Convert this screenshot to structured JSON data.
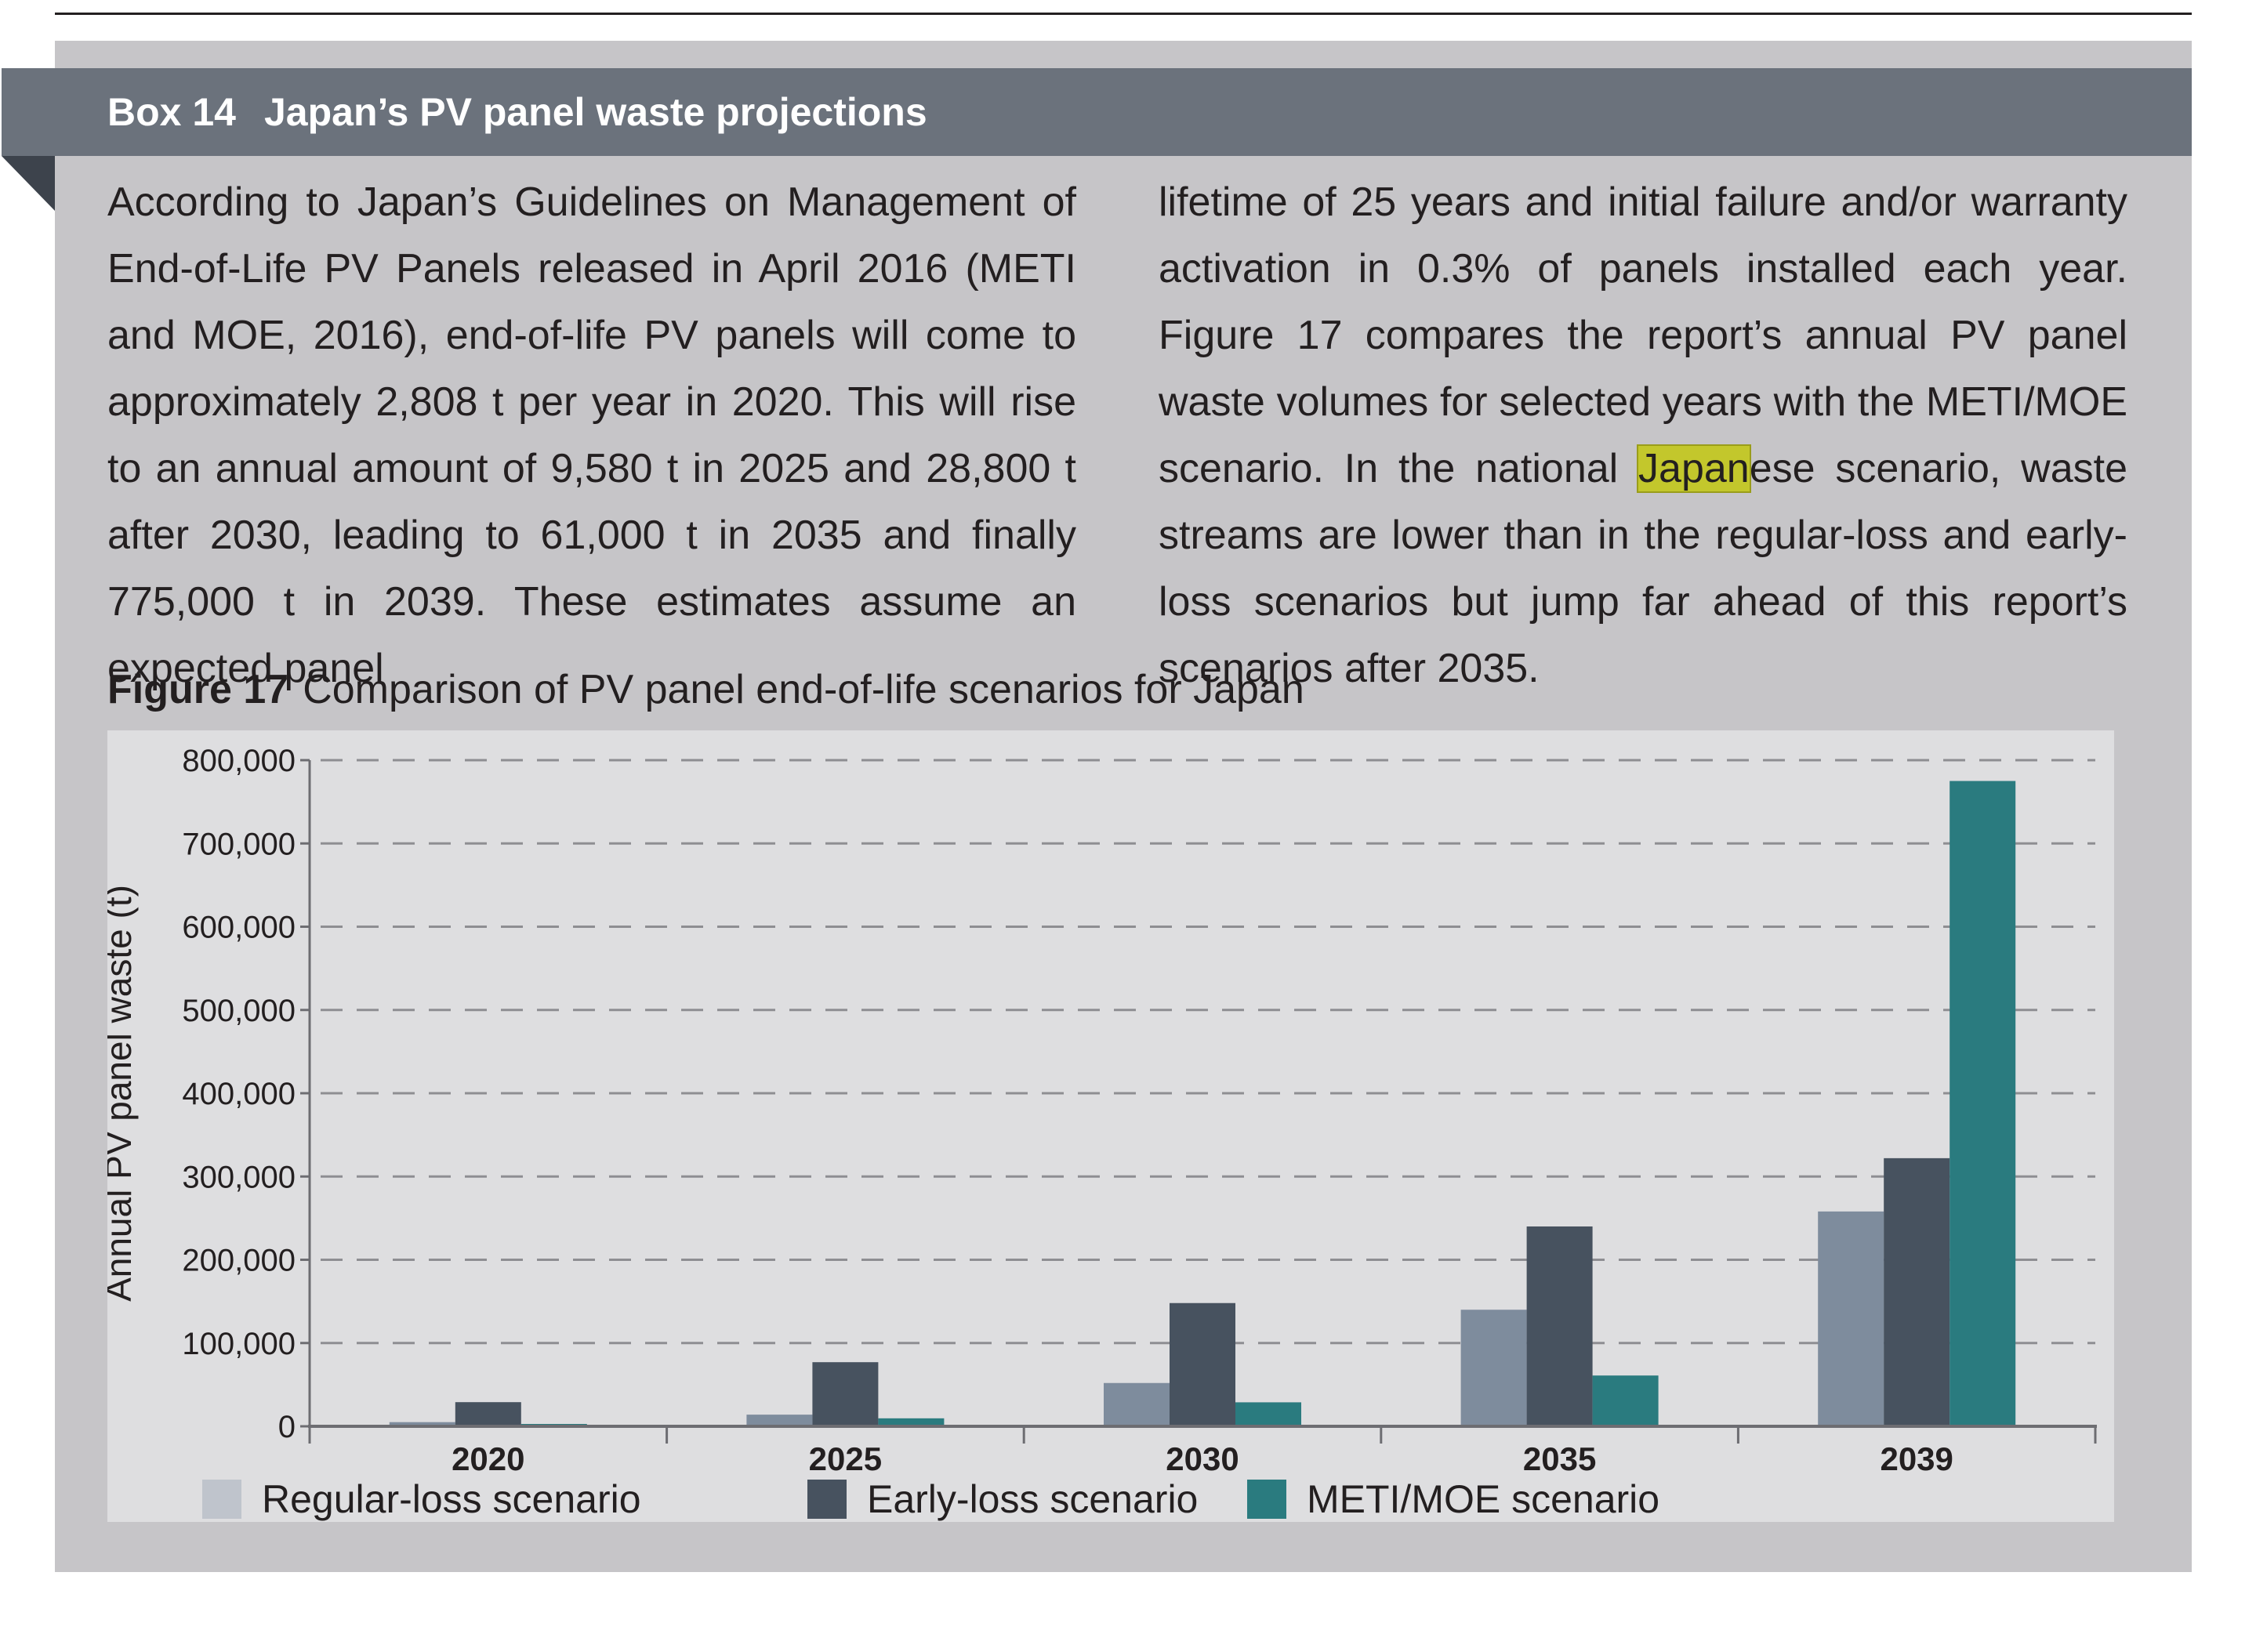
{
  "box": {
    "number": "Box 14",
    "title": "Japan’s PV panel waste projections"
  },
  "body": {
    "left_column": "According to Japan’s Guidelines on Management of End-of-Life PV Panels released in April 2016 (METI and MOE, 2016), end-of-life PV panels will come to approximately 2,808 t per year in 2020. This will rise to an annual amount of 9,580 t in 2025 and 28,800 t after 2030, leading to 61,000 t in 2035 and finally 775,000 t in 2039. These estimates assume an expected panel",
    "right_before": "lifetime of 25 years and initial failure and/or warranty activation in 0.3% of panels installed each year. Figure 17 compares the report’s annual PV panel waste volumes for selected years with the METI/MOE scenario. In the national ",
    "right_highlight": "Japan",
    "right_after": "ese scenario, waste streams are lower than in the regular-loss and early-loss scenarios but jump far ahead of this report’s scenarios after 2035."
  },
  "figure": {
    "label": "Figure 17",
    "caption": "Comparison of PV panel end-of-life scenarios for Japan"
  },
  "chart_data": {
    "type": "bar",
    "categories": [
      "2020",
      "2025",
      "2030",
      "2035",
      "2039"
    ],
    "series": [
      {
        "name": "Regular-loss scenario",
        "color": "#7e8c9d",
        "values": [
          5000,
          14000,
          52000,
          140000,
          258000
        ]
      },
      {
        "name": "Early-loss scenario",
        "color": "#47525f",
        "values": [
          29000,
          77000,
          148000,
          240000,
          322000
        ]
      },
      {
        "name": "METI/MOE scenario",
        "color": "#2a7b7f",
        "values": [
          2808,
          9580,
          28800,
          61000,
          775000
        ]
      }
    ],
    "yticks": [
      "0",
      "100,000",
      "200,000",
      "300,000",
      "400,000",
      "500,000",
      "600,000",
      "700,000",
      "800,000"
    ],
    "ylim": [
      0,
      800000
    ],
    "ylabel": "Annual PV panel waste (t)",
    "xlabel": "",
    "grid": true,
    "legend_swatch": "#bfc4cc",
    "legend_position": "bottom"
  }
}
